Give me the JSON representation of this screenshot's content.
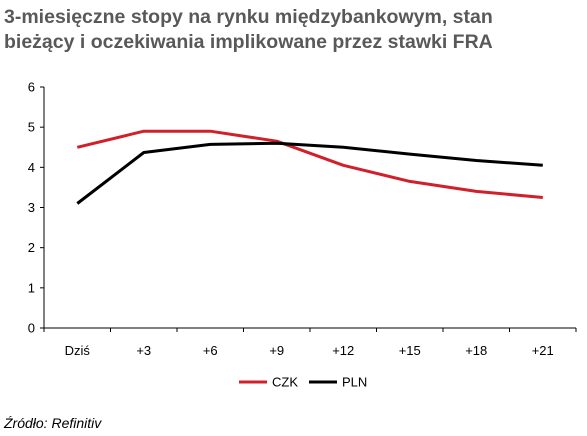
{
  "chart_data": {
    "type": "line",
    "title_lines": [
      "3-miesięczne stopy na rynku międzybankowym, stan",
      "bieżący i oczekiwania implikowane przez stawki FRA"
    ],
    "xlabel": "",
    "ylabel": "",
    "categories": [
      "Dziś",
      "+3",
      "+6",
      "+9",
      "+12",
      "+15",
      "+18",
      "+21"
    ],
    "ylim": [
      0,
      6
    ],
    "yticks": [
      "0",
      "1",
      "2",
      "3",
      "4",
      "5",
      "6"
    ],
    "grid": false,
    "legend_position": "bottom",
    "series": [
      {
        "name": "CZK",
        "color": "#d0202a",
        "values": [
          4.5,
          4.9,
          4.9,
          4.65,
          4.05,
          3.65,
          3.4,
          3.25
        ]
      },
      {
        "name": "PLN",
        "color": "#000000",
        "values": [
          3.1,
          4.37,
          4.57,
          4.6,
          4.5,
          4.33,
          4.17,
          4.05
        ]
      }
    ]
  },
  "source": "Źródło: Refinitiv"
}
